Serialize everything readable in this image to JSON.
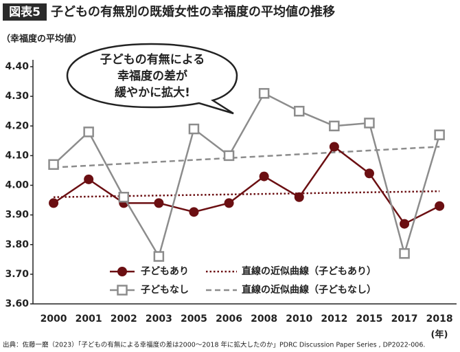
{
  "chart_data": {
    "type": "line",
    "badge": "図表5",
    "title": "子どもの有無別の既婚女性の幸福度の平均値の推移",
    "y_label": "（幸福度の平均値）",
    "x_unit": "(年)",
    "categories": [
      "2000",
      "2001",
      "2002",
      "2003",
      "2005",
      "2006",
      "2008",
      "2010",
      "2012",
      "2015",
      "2017",
      "2018"
    ],
    "series": [
      {
        "name": "子どもあり",
        "color": "#6b0f12",
        "marker": "circle",
        "values": [
          3.94,
          4.02,
          3.94,
          3.94,
          3.91,
          3.94,
          4.03,
          3.96,
          4.13,
          4.04,
          3.87,
          3.93
        ]
      },
      {
        "name": "子どもなし",
        "color": "#8c8c8c",
        "marker": "square",
        "values": [
          4.07,
          4.18,
          3.96,
          3.76,
          4.19,
          4.1,
          4.31,
          4.25,
          4.2,
          4.21,
          3.77,
          4.17
        ]
      }
    ],
    "trends": [
      {
        "name": "直線の近似曲線（子どもあり）",
        "color": "#6b0f12",
        "style": "dotted",
        "values": [
          3.96,
          3.98
        ]
      },
      {
        "name": "直線の近似曲線（子どもなし）",
        "color": "#8c8c8c",
        "style": "dashed",
        "values": [
          4.06,
          4.13
        ]
      }
    ],
    "ylim": [
      3.6,
      4.4
    ],
    "yticks": [
      {
        "value": 3.6,
        "label": "3.60"
      },
      {
        "value": 3.7,
        "label": "3.70"
      },
      {
        "value": 3.8,
        "label": "3.80"
      },
      {
        "value": 3.9,
        "label": "3.90"
      },
      {
        "value": 4.0,
        "label": "4.00"
      },
      {
        "value": 4.1,
        "label": "4.10"
      },
      {
        "value": 4.2,
        "label": "4.20"
      },
      {
        "value": 4.3,
        "label": "4.30"
      },
      {
        "value": 4.4,
        "label": "4.40"
      }
    ],
    "annotation": [
      "子どもの有無による",
      "幸福度の差が",
      "緩やかに拡大!"
    ],
    "source": "出典：佐藤一磨（2023）「子どもの有無による幸福度の差は2000〜2018 年に拡大したのか」PDRC Discussion Paper Series , DP2022-006."
  }
}
